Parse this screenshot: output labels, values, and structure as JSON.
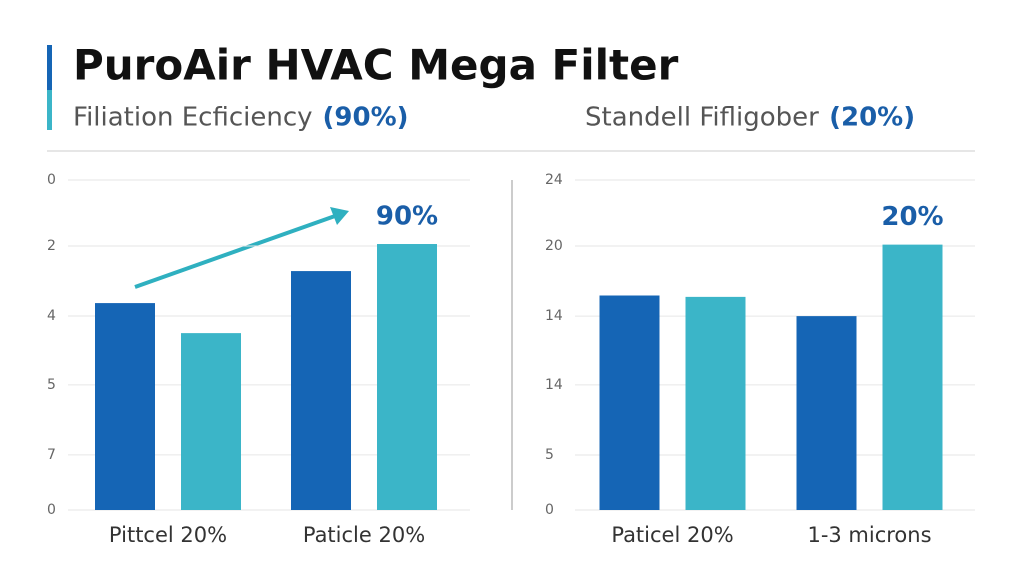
{
  "header": {
    "title": "PuroAir HVAC Mega Filter"
  },
  "chart_data": [
    {
      "type": "bar",
      "subtitle": "Filiation Ecficiency",
      "subtitle_highlight": "(90%)",
      "categories": [
        "Pittcel 20%",
        "Paticle 20%"
      ],
      "series": [
        {
          "color": "#1565b5",
          "values": [
            62.7,
            72.4
          ]
        },
        {
          "color": "#3bb5c8",
          "values": [
            53.6,
            80.6
          ]
        }
      ],
      "ylim": [
        0,
        100
      ],
      "yticks": [
        0,
        {
          "value": 16.7,
          "label": "7"
        },
        {
          "value": 37.9,
          "label": "5"
        },
        {
          "value": 58.8,
          "label": "4"
        },
        {
          "value": 80,
          "label": "2"
        },
        {
          "value": 100,
          "label": "0"
        }
      ],
      "grid": true,
      "annotation": "90%"
    },
    {
      "type": "bar",
      "subtitle": "Standell Fifligober",
      "subtitle_highlight": "(20%)",
      "categories": [
        "Paticel 20%",
        "1-3 microns"
      ],
      "series": [
        {
          "color": "#1565b5",
          "values": [
            15.6,
            14.1
          ]
        },
        {
          "color": "#3bb5c8",
          "values": [
            15.5,
            19.3
          ]
        }
      ],
      "ylim": [
        0,
        24
      ],
      "yticks": [
        0,
        {
          "value": 4,
          "label": "5"
        },
        {
          "value": 9.1,
          "label": "14"
        },
        {
          "value": 14.1,
          "label": "14"
        },
        {
          "value": 19.2,
          "label": "20"
        },
        24
      ],
      "grid": true,
      "annotation": "20%"
    }
  ]
}
